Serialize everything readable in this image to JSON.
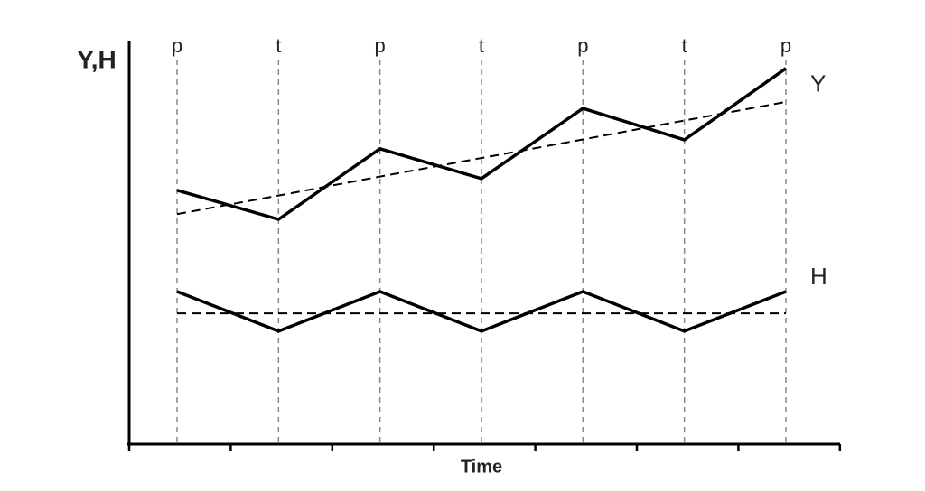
{
  "chart_data": {
    "type": "line",
    "y_label": "Y,H",
    "x_label": "Time",
    "categories": [
      "p",
      "t",
      "p",
      "t",
      "p",
      "t",
      "p"
    ],
    "ylim": [
      0,
      100
    ],
    "series": [
      {
        "name": "Y",
        "color": "#000000",
        "dashed": false,
        "values": [
          62.9,
          55.7,
          73.2,
          65.8,
          83.2,
          75.4,
          93.1
        ]
      },
      {
        "color": "#000000",
        "dashed": true,
        "values": [
          57.0,
          61.6,
          66.3,
          70.9,
          75.5,
          80.2,
          84.8
        ]
      },
      {
        "name": "H",
        "color": "#000000",
        "dashed": false,
        "values": [
          37.8,
          28.0,
          37.8,
          28.0,
          37.8,
          28.0,
          37.8
        ]
      },
      {
        "color": "#000000",
        "dashed": true,
        "values": [
          32.4,
          32.4,
          32.4,
          32.4,
          32.4,
          32.4,
          32.4
        ]
      }
    ],
    "category_guides": true
  }
}
